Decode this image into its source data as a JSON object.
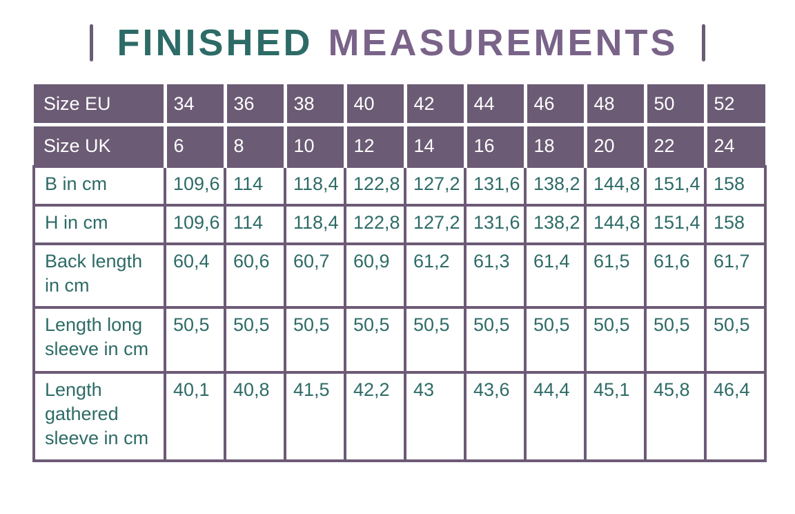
{
  "title": {
    "word1": "FINISHED",
    "word2": "MEASUREMENTS"
  },
  "colors": {
    "title_teal": "#2d6b66",
    "title_purple": "#7a6389",
    "header_background_purple": "#6b5b74",
    "body_border_purple": "#6c5a76",
    "body_text_teal": "#2d6b66",
    "header_text_white": "#ffffff"
  },
  "table": {
    "header_rows": [
      {
        "label": "Size EU",
        "values": [
          "34",
          "36",
          "38",
          "40",
          "42",
          "44",
          "46",
          "48",
          "50",
          "52"
        ]
      },
      {
        "label": "Size UK",
        "values": [
          "6",
          "8",
          "10",
          "12",
          "14",
          "16",
          "18",
          "20",
          "22",
          "24"
        ]
      }
    ],
    "body_rows": [
      {
        "label": "B in cm",
        "values": [
          "109,6",
          "114",
          "118,4",
          "122,8",
          "127,2",
          "131,6",
          "138,2",
          "144,8",
          "151,4",
          "158"
        ]
      },
      {
        "label": "H in cm",
        "values": [
          "109,6",
          "114",
          "118,4",
          "122,8",
          "127,2",
          "131,6",
          "138,2",
          "144,8",
          "151,4",
          "158"
        ]
      },
      {
        "label": "Back length in cm",
        "values": [
          "60,4",
          "60,6",
          "60,7",
          "60,9",
          "61,2",
          "61,3",
          "61,4",
          "61,5",
          "61,6",
          "61,7"
        ]
      },
      {
        "label": "Length long sleeve in cm",
        "values": [
          "50,5",
          "50,5",
          "50,5",
          "50,5",
          "50,5",
          "50,5",
          "50,5",
          "50,5",
          "50,5",
          "50,5"
        ]
      },
      {
        "label": "Length gathered sleeve in cm",
        "values": [
          "40,1",
          "40,8",
          "41,5",
          "42,2",
          "43",
          "43,6",
          "44,4",
          "45,1",
          "45,8",
          "46,4"
        ]
      }
    ]
  }
}
